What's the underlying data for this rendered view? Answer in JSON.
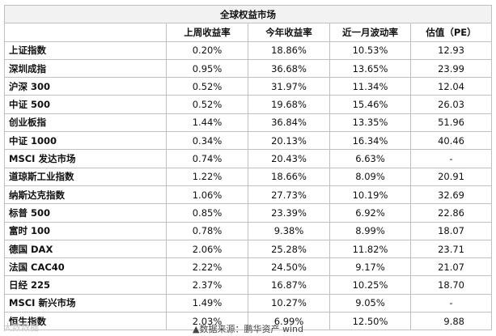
{
  "title": "全球权益市场",
  "headers": [
    "",
    "上周收益率",
    "今年收益率",
    "近一月波动率",
    "估值（PE）"
  ],
  "rows": [
    {
      "name": "上证指数",
      "weekly": "0.20%",
      "ytd": "18.86%",
      "vol": "10.53%",
      "pe": "12.93"
    },
    {
      "name": "深圳成指",
      "weekly": "0.95%",
      "ytd": "36.68%",
      "vol": "13.65%",
      "pe": "23.99"
    },
    {
      "name": "沪深 300",
      "weekly": "0.52%",
      "ytd": "31.97%",
      "vol": "11.34%",
      "pe": "12.04"
    },
    {
      "name": "中证 500",
      "weekly": "0.52%",
      "ytd": "19.68%",
      "vol": "15.46%",
      "pe": "26.03"
    },
    {
      "name": "创业板指",
      "weekly": "1.44%",
      "ytd": "36.84%",
      "vol": "13.35%",
      "pe": "51.96"
    },
    {
      "name": "中证 1000",
      "weekly": "0.34%",
      "ytd": "20.13%",
      "vol": "16.34%",
      "pe": "40.46"
    },
    {
      "name": "MSCI 发达市场",
      "weekly": "0.74%",
      "ytd": "20.43%",
      "vol": "6.63%",
      "pe": "-"
    },
    {
      "name": "道琼斯工业指数",
      "weekly": "1.22%",
      "ytd": "18.66%",
      "vol": "8.09%",
      "pe": "20.91"
    },
    {
      "name": "纳斯达克指数",
      "weekly": "1.06%",
      "ytd": "27.73%",
      "vol": "10.19%",
      "pe": "32.69"
    },
    {
      "name": "标普 500",
      "weekly": "0.85%",
      "ytd": "23.39%",
      "vol": "6.92%",
      "pe": "22.86"
    },
    {
      "name": "富时 100",
      "weekly": "0.78%",
      "ytd": "9.38%",
      "vol": "8.99%",
      "pe": "18.07"
    },
    {
      "name": "德国 DAX",
      "weekly": "2.06%",
      "ytd": "25.28%",
      "vol": "11.82%",
      "pe": "23.71"
    },
    {
      "name": "法国 CAC40",
      "weekly": "2.22%",
      "ytd": "24.50%",
      "vol": "9.17%",
      "pe": "21.07"
    },
    {
      "name": "日经 225",
      "weekly": "2.37%",
      "ytd": "16.87%",
      "vol": "10.25%",
      "pe": "18.70"
    },
    {
      "name": "MSCI 新兴市场",
      "weekly": "1.49%",
      "ytd": "10.27%",
      "vol": "9.05%",
      "pe": "-"
    },
    {
      "name": "恒生指数",
      "weekly": "2.03%",
      "ytd": "6.99%",
      "vol": "12.50%",
      "pe": "9.88"
    }
  ],
  "source": "▲数据来源：鹏华资产 wind",
  "watermark": "大数数据"
}
